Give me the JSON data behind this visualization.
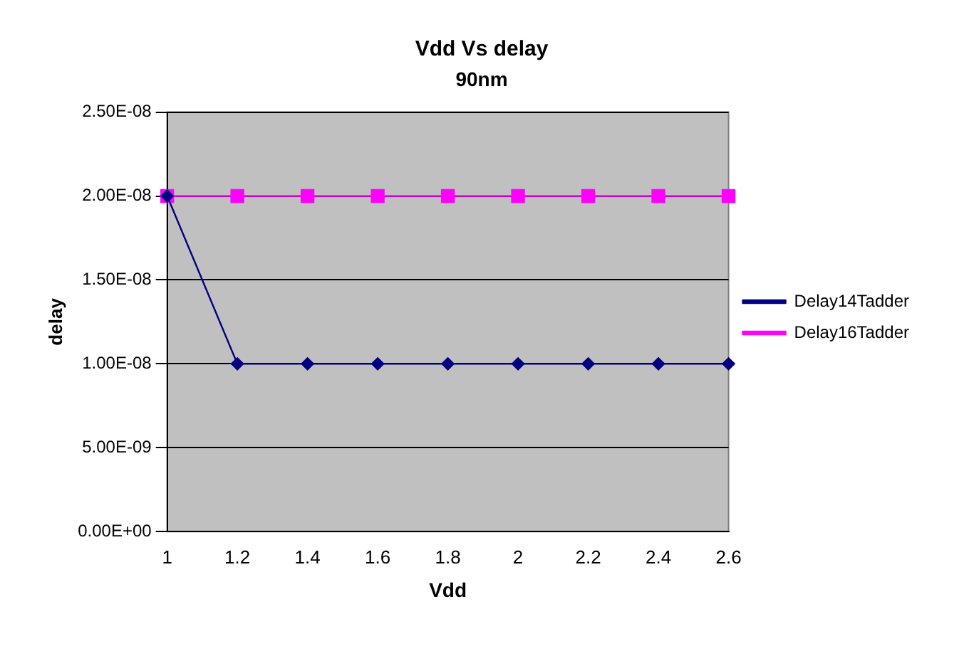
{
  "chart_data": {
    "type": "line",
    "title": "Vdd Vs delay",
    "subtitle": "90nm",
    "xlabel": "Vdd",
    "ylabel": "delay",
    "categories": [
      "1",
      "1.2",
      "1.4",
      "1.6",
      "1.8",
      "2",
      "2.2",
      "2.4",
      "2.6"
    ],
    "series": [
      {
        "name": "Delay14Tadder",
        "color": "#000080",
        "marker": "diamond",
        "values": [
          2e-08,
          1e-08,
          1e-08,
          1e-08,
          1e-08,
          1e-08,
          1e-08,
          1e-08,
          1e-08
        ]
      },
      {
        "name": "Delay16Tadder",
        "color": "#ff00ff",
        "marker": "square",
        "values": [
          2e-08,
          2e-08,
          2e-08,
          2e-08,
          2e-08,
          2e-08,
          2e-08,
          2e-08,
          2e-08
        ]
      }
    ],
    "ylim": [
      0,
      2.5e-08
    ],
    "yticks": [
      {
        "value": 0,
        "label": "0.00E+00"
      },
      {
        "value": 5e-09,
        "label": "5.00E-09"
      },
      {
        "value": 1e-08,
        "label": "1.00E-08"
      },
      {
        "value": 1.5e-08,
        "label": "1.50E-08"
      },
      {
        "value": 2e-08,
        "label": "2.00E-08"
      },
      {
        "value": 2.5e-08,
        "label": "2.50E-08"
      }
    ],
    "grid": "y",
    "legend": "right",
    "line_style": "solid"
  }
}
